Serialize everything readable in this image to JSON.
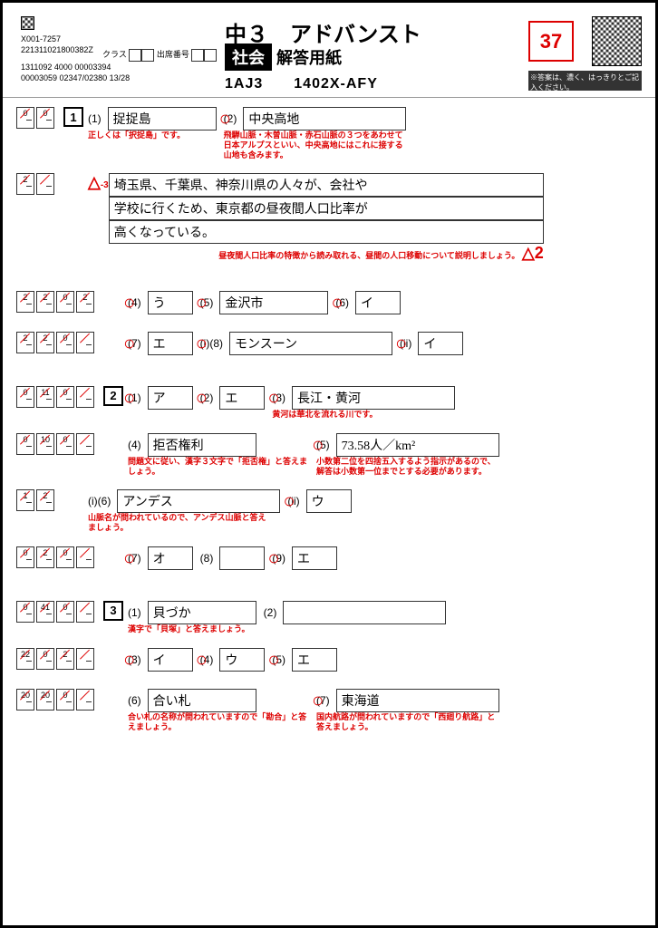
{
  "header": {
    "title_main": "中３　アドバンスト",
    "subject_label": "社会",
    "title_sub": "解答用紙",
    "code1": "1AJ3",
    "code2": "1402X-AFY",
    "score": "37",
    "id1": "X001-7257",
    "id2": "221311021800382Z",
    "id3": "1311092 4000 00003394",
    "id4": "00003059 02347/02380 13/28",
    "class_label": "クラス",
    "num_label": "出席番号",
    "instruction": "※答案は、濃く、はっきりとご記入ください。"
  },
  "rows": [
    {
      "scores": [
        [
          "0",
          "0"
        ]
      ],
      "big": "1",
      "items": [
        {
          "n": "(1)",
          "ans": "捉捉島",
          "w": "md",
          "note": "正しくは「択捉島」です。"
        },
        {
          "n": "(2)",
          "ans": "中央高地",
          "w": "lg",
          "circ": true,
          "note": "飛騨山脈・木曽山脈・赤石山脈の３つをあわせて日本アルプスといい、中央高地にはこれに接する山地も含みます。"
        }
      ]
    },
    {
      "scores": [
        [
          "2",
          ""
        ]
      ],
      "pre_tri": "-3",
      "long_answer": [
        "埼玉県、千葉県、神奈川県の人々が、会社や",
        "学校に行くため、東京都の昼夜間人口比率が",
        "高くなっている。"
      ],
      "post_note": "昼夜間人口比率の特徴から読み取れる、昼間の人口移動について説明しましょう。",
      "post_tri": "2"
    },
    {
      "scores": [
        [
          "2",
          "2"
        ],
        [
          "0",
          "2"
        ]
      ],
      "items": [
        {
          "n": "(4)",
          "ans": "う",
          "w": "sm",
          "circ": true
        },
        {
          "n": "(5)",
          "ans": "金沢市",
          "w": "md",
          "circ": true
        },
        {
          "n": "(6)",
          "ans": "イ",
          "w": "sm",
          "circ": true
        }
      ]
    },
    {
      "scores": [
        [
          "2",
          "2"
        ],
        [
          "0",
          ""
        ]
      ],
      "items": [
        {
          "n": "(7)",
          "ans": "エ",
          "w": "sm",
          "circ": true
        },
        {
          "n": "(8)",
          "ans": "モンスーン",
          "w": "lg",
          "circ": true,
          "sub": "(i)"
        },
        {
          "n": "(ii)",
          "ans": "イ",
          "w": "sm",
          "circ": true
        }
      ]
    },
    {
      "scores": [
        [
          "0",
          "11"
        ],
        [
          "0",
          ""
        ]
      ],
      "big": "2",
      "items": [
        {
          "n": "(1)",
          "ans": "ア",
          "w": "sm",
          "circ": true
        },
        {
          "n": "(2)",
          "ans": "エ",
          "w": "sm",
          "circ": true
        },
        {
          "n": "(3)",
          "ans": "長江・黄河",
          "w": "lg",
          "circ": true,
          "note": "黄河は華北を流れる川です。"
        }
      ]
    },
    {
      "scores": [
        [
          "0",
          "10"
        ],
        [
          "0",
          ""
        ]
      ],
      "items": [
        {
          "n": "(4)",
          "ans": "拒否権利",
          "w": "md",
          "note": "問題文に従い、漢字３文字で「拒否権」と答えましょう。"
        },
        {
          "n": "(5)",
          "ans": "73.58人／km²",
          "w": "lg",
          "circ": true,
          "note": "小数第二位を四捨五入するよう指示があるので、解答は小数第一位までとする必要があります。"
        }
      ]
    },
    {
      "scores": [
        [
          "1",
          "2"
        ]
      ],
      "items": [
        {
          "n": "(6)",
          "ans": "アンデス",
          "w": "lg",
          "sub": "(i)",
          "note": "山脈名が問われているので、アンデス山脈と答えましょう。"
        },
        {
          "n": "(ii)",
          "ans": "ウ",
          "w": "sm",
          "circ": true
        }
      ]
    },
    {
      "scores": [
        [
          "0",
          "2"
        ],
        [
          "0",
          ""
        ]
      ],
      "items": [
        {
          "n": "(7)",
          "ans": "オ",
          "w": "sm",
          "circ": true
        },
        {
          "n": "(8)",
          "ans": "",
          "w": "sm"
        },
        {
          "n": "(9)",
          "ans": "エ",
          "w": "sm",
          "circ": true
        }
      ]
    },
    {
      "scores": [
        [
          "0",
          "41"
        ],
        [
          "0",
          ""
        ]
      ],
      "big": "3",
      "items": [
        {
          "n": "(1)",
          "ans": "貝づか",
          "w": "md",
          "note": "漢字で「貝塚」と答えましょう。"
        },
        {
          "n": "(2)",
          "ans": "",
          "w": "lg"
        }
      ]
    },
    {
      "scores": [
        [
          "22",
          "0"
        ],
        [
          "2",
          ""
        ]
      ],
      "items": [
        {
          "n": "(3)",
          "ans": "イ",
          "w": "sm",
          "circ": true
        },
        {
          "n": "(4)",
          "ans": "ウ",
          "w": "sm",
          "circ": true
        },
        {
          "n": "(5)",
          "ans": "エ",
          "w": "sm",
          "circ": true
        }
      ]
    },
    {
      "scores": [
        [
          "20",
          "20"
        ],
        [
          "0",
          ""
        ]
      ],
      "items": [
        {
          "n": "(6)",
          "ans": "合い札",
          "w": "md",
          "note": "合い札の名称が問われていますので「勘合」と答えましょう。"
        },
        {
          "n": "(7)",
          "ans": "東海道",
          "w": "lg",
          "circ": true,
          "note": "国内航路が問われていますので「西廻り航路」と答えましょう。"
        }
      ]
    }
  ],
  "colors": {
    "red": "#d00",
    "black": "#000",
    "border": "#333"
  }
}
